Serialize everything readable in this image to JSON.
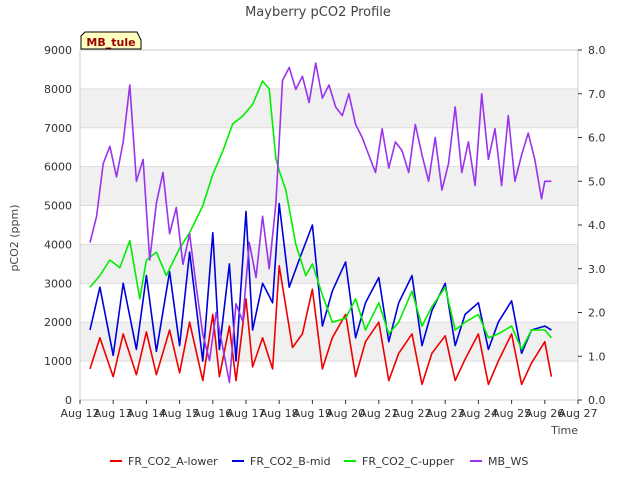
{
  "chart_data": {
    "type": "line",
    "title": "Mayberry pCO2 Profile",
    "xlabel": "Time",
    "ylabel": "pCO2 (ppm)",
    "badge": "MB_tule",
    "x_tick_labels": [
      "Aug 12",
      "Aug 13",
      "Aug 14",
      "Aug 15",
      "Aug 16",
      "Aug 17",
      "Aug 18",
      "Aug 19",
      "Aug 20",
      "Aug 21",
      "Aug 22",
      "Aug 23",
      "Aug 24",
      "Aug 25",
      "Aug 26",
      "Aug 27"
    ],
    "xlim_days": [
      12,
      27
    ],
    "ylim": [
      0,
      9000
    ],
    "y_ticks": [
      0,
      1000,
      2000,
      3000,
      4000,
      5000,
      6000,
      7000,
      8000,
      9000
    ],
    "y2lim": [
      0.0,
      8.0
    ],
    "y2_ticks": [
      "0.0",
      "1.0",
      "2.0",
      "3.0",
      "4.0",
      "5.0",
      "6.0",
      "7.0",
      "8.0"
    ],
    "grid": true,
    "legend_position": "bottom",
    "series": [
      {
        "name": "FR_CO2_A-lower",
        "color": "#ee0000",
        "axis": "left",
        "x": [
          12.3,
          12.6,
          13.0,
          13.3,
          13.7,
          14.0,
          14.3,
          14.7,
          15.0,
          15.3,
          15.7,
          16.0,
          16.2,
          16.5,
          16.7,
          17.0,
          17.2,
          17.5,
          17.8,
          18.0,
          18.4,
          18.7,
          19.0,
          19.3,
          19.6,
          20.0,
          20.3,
          20.6,
          21.0,
          21.3,
          21.6,
          22.0,
          22.3,
          22.6,
          23.0,
          23.3,
          23.6,
          24.0,
          24.3,
          24.6,
          25.0,
          25.3,
          25.6,
          26.0,
          26.2
        ],
        "values": [
          800,
          1600,
          600,
          1700,
          650,
          1750,
          650,
          1800,
          700,
          2000,
          500,
          2200,
          600,
          1900,
          500,
          2600,
          850,
          1600,
          800,
          3450,
          1350,
          1700,
          2850,
          800,
          1600,
          2200,
          600,
          1500,
          2000,
          500,
          1200,
          1700,
          400,
          1200,
          1650,
          500,
          1050,
          1700,
          400,
          1000,
          1700,
          400,
          950,
          1500,
          600
        ]
      },
      {
        "name": "FR_CO2_B-mid",
        "color": "#0000dd",
        "axis": "left",
        "x": [
          12.3,
          12.6,
          13.0,
          13.3,
          13.7,
          14.0,
          14.3,
          14.7,
          15.0,
          15.3,
          15.7,
          16.0,
          16.2,
          16.5,
          16.7,
          17.0,
          17.2,
          17.5,
          17.8,
          18.0,
          18.3,
          18.6,
          19.0,
          19.3,
          19.6,
          20.0,
          20.3,
          20.6,
          21.0,
          21.3,
          21.6,
          22.0,
          22.3,
          22.6,
          23.0,
          23.3,
          23.6,
          24.0,
          24.3,
          24.6,
          25.0,
          25.3,
          25.6,
          26.0,
          26.2
        ],
        "values": [
          1800,
          2900,
          1150,
          3000,
          1300,
          3200,
          1250,
          3300,
          1400,
          3800,
          1000,
          4300,
          1300,
          3500,
          1000,
          4850,
          1800,
          3000,
          2500,
          5050,
          2900,
          3600,
          4500,
          1900,
          2800,
          3550,
          1600,
          2500,
          3150,
          1500,
          2500,
          3200,
          1400,
          2300,
          3000,
          1400,
          2200,
          2500,
          1300,
          2000,
          2550,
          1200,
          1800,
          1900,
          1800
        ]
      },
      {
        "name": "FR_CO2_C-upper",
        "color": "#00ee00",
        "axis": "left",
        "x": [
          12.3,
          12.6,
          12.9,
          13.2,
          13.5,
          13.8,
          14.0,
          14.3,
          14.6,
          15.0,
          15.3,
          15.7,
          16.0,
          16.3,
          16.6,
          16.9,
          17.2,
          17.5,
          17.7,
          17.9,
          18.0,
          18.2,
          18.5,
          18.8,
          19.0,
          19.3,
          19.6,
          20.0,
          20.3,
          20.6,
          21.0,
          21.3,
          21.6,
          22.0,
          22.3,
          22.6,
          23.0,
          23.3,
          23.6,
          24.0,
          24.3,
          24.6,
          25.0,
          25.3,
          25.6,
          26.0,
          26.2
        ],
        "values": [
          2900,
          3200,
          3600,
          3400,
          4100,
          2600,
          3600,
          3800,
          3200,
          3900,
          4300,
          5000,
          5800,
          6400,
          7100,
          7300,
          7600,
          8200,
          8000,
          6200,
          5900,
          5400,
          4000,
          3200,
          3500,
          2700,
          2000,
          2100,
          2600,
          1800,
          2500,
          1700,
          2000,
          2800,
          1900,
          2400,
          2900,
          1800,
          2000,
          2200,
          1600,
          1700,
          1900,
          1300,
          1800,
          1800,
          1600
        ]
      },
      {
        "name": "MB_WS",
        "color": "#9933ee",
        "axis": "right",
        "x": [
          12.3,
          12.5,
          12.7,
          12.9,
          13.1,
          13.3,
          13.5,
          13.7,
          13.9,
          14.1,
          14.3,
          14.5,
          14.7,
          14.9,
          15.1,
          15.3,
          15.5,
          15.7,
          15.9,
          16.1,
          16.3,
          16.5,
          16.7,
          16.9,
          17.1,
          17.3,
          17.5,
          17.7,
          17.9,
          18.1,
          18.3,
          18.5,
          18.7,
          18.9,
          19.1,
          19.3,
          19.5,
          19.7,
          19.9,
          20.1,
          20.3,
          20.5,
          20.7,
          20.9,
          21.1,
          21.3,
          21.5,
          21.7,
          21.9,
          22.1,
          22.3,
          22.5,
          22.7,
          22.9,
          23.1,
          23.3,
          23.5,
          23.7,
          23.9,
          24.1,
          24.3,
          24.5,
          24.7,
          24.9,
          25.1,
          25.3,
          25.5,
          25.7,
          25.9,
          26.0,
          26.2
        ],
        "values": [
          3.6,
          4.2,
          5.4,
          5.8,
          5.1,
          5.9,
          7.2,
          5.0,
          5.5,
          3.2,
          4.5,
          5.2,
          3.8,
          4.4,
          3.1,
          3.8,
          2.6,
          1.5,
          0.9,
          2.0,
          1.2,
          0.4,
          2.2,
          1.8,
          3.6,
          2.8,
          4.2,
          3.0,
          4.5,
          7.3,
          7.6,
          7.1,
          7.4,
          6.8,
          7.7,
          6.9,
          7.2,
          6.7,
          6.5,
          7.0,
          6.3,
          6.0,
          5.6,
          5.2,
          6.2,
          5.3,
          5.9,
          5.7,
          5.2,
          6.3,
          5.6,
          5.0,
          6.0,
          4.8,
          5.4,
          6.7,
          5.2,
          5.9,
          4.9,
          7.0,
          5.5,
          6.2,
          4.9,
          6.5,
          5.0,
          5.6,
          6.1,
          5.5,
          4.6,
          5.0,
          5.0
        ]
      }
    ]
  }
}
